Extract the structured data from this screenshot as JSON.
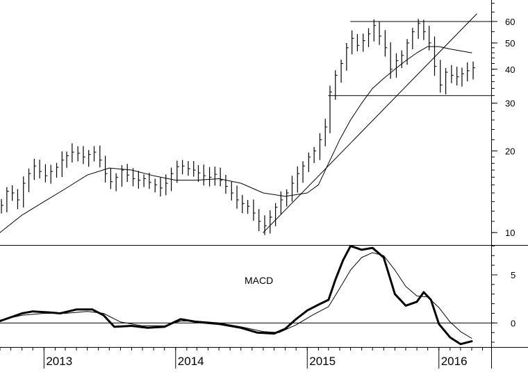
{
  "chart_data": [
    {
      "type": "bar",
      "subtype": "ohlc-price",
      "y_scale": "log",
      "ylim": [
        9,
        72
      ],
      "y_ticks": [
        10,
        20,
        30,
        40,
        50,
        60
      ],
      "x_range": [
        "2012-09-01",
        "2016-05-25"
      ],
      "x_labels": [
        "2013",
        "2014",
        "2015",
        "2016"
      ],
      "x_label_dates": [
        "2013-01-01",
        "2014-01-01",
        "2015-01-01",
        "2016-01-01"
      ],
      "grid": false,
      "series": [
        {
          "kind": "price-close",
          "points": [
            [
              "2012-09-05",
              12.6
            ],
            [
              "2012-09-20",
              14.2
            ],
            [
              "2012-10-05",
              14.0
            ],
            [
              "2012-10-20",
              13.2
            ],
            [
              "2012-11-05",
              15.2
            ],
            [
              "2012-11-20",
              16.5
            ],
            [
              "2012-12-05",
              17.6
            ],
            [
              "2012-12-20",
              16.8
            ],
            [
              "2013-01-05",
              16.2
            ],
            [
              "2013-01-20",
              16.8
            ],
            [
              "2013-02-05",
              17.4
            ],
            [
              "2013-02-20",
              18.5
            ],
            [
              "2013-03-05",
              19.2
            ],
            [
              "2013-03-20",
              19.8
            ],
            [
              "2013-04-05",
              19.6
            ],
            [
              "2013-04-20",
              19.0
            ],
            [
              "2013-05-05",
              19.4
            ],
            [
              "2013-05-20",
              19.8
            ],
            [
              "2013-06-05",
              18.5
            ],
            [
              "2013-06-20",
              16.5
            ],
            [
              "2013-07-05",
              15.4
            ],
            [
              "2013-07-20",
              16.0
            ],
            [
              "2013-08-05",
              17.0
            ],
            [
              "2013-08-20",
              16.3
            ],
            [
              "2013-09-05",
              15.8
            ],
            [
              "2013-09-20",
              15.6
            ],
            [
              "2013-10-05",
              15.8
            ],
            [
              "2013-10-20",
              15.3
            ],
            [
              "2013-11-05",
              15.0
            ],
            [
              "2013-11-20",
              14.6
            ],
            [
              "2013-12-05",
              15.2
            ],
            [
              "2013-12-20",
              16.5
            ],
            [
              "2014-01-05",
              17.5
            ],
            [
              "2014-01-20",
              17.6
            ],
            [
              "2014-02-05",
              17.2
            ],
            [
              "2014-02-20",
              17.0
            ],
            [
              "2014-03-05",
              16.6
            ],
            [
              "2014-03-20",
              16.2
            ],
            [
              "2014-04-05",
              16.0
            ],
            [
              "2014-04-20",
              16.4
            ],
            [
              "2014-05-05",
              15.6
            ],
            [
              "2014-05-20",
              14.8
            ],
            [
              "2014-06-05",
              14.0
            ],
            [
              "2014-06-20",
              13.2
            ],
            [
              "2014-07-05",
              12.8
            ],
            [
              "2014-07-20",
              12.5
            ],
            [
              "2014-08-05",
              11.8
            ],
            [
              "2014-08-20",
              11.0
            ],
            [
              "2014-09-05",
              10.6
            ],
            [
              "2014-09-20",
              11.4
            ],
            [
              "2014-10-05",
              12.4
            ],
            [
              "2014-10-20",
              13.2
            ],
            [
              "2014-11-05",
              14.0
            ],
            [
              "2014-11-20",
              15.2
            ],
            [
              "2014-12-05",
              16.5
            ],
            [
              "2014-12-20",
              17.6
            ],
            [
              "2015-01-05",
              19.0
            ],
            [
              "2015-01-20",
              20.0
            ],
            [
              "2015-02-05",
              22.0
            ],
            [
              "2015-02-20",
              24.5
            ],
            [
              "2015-03-05",
              33.0
            ],
            [
              "2015-03-20",
              38.0
            ],
            [
              "2015-04-05",
              42.0
            ],
            [
              "2015-04-20",
              48.0
            ],
            [
              "2015-05-05",
              52.0
            ],
            [
              "2015-05-20",
              49.0
            ],
            [
              "2015-06-05",
              51.0
            ],
            [
              "2015-06-20",
              54.0
            ],
            [
              "2015-07-05",
              58.0
            ],
            [
              "2015-07-20",
              53.0
            ],
            [
              "2015-08-05",
              48.0
            ],
            [
              "2015-08-20",
              40.0
            ],
            [
              "2015-09-05",
              43.0
            ],
            [
              "2015-09-20",
              45.0
            ],
            [
              "2015-10-05",
              50.0
            ],
            [
              "2015-10-20",
              55.0
            ],
            [
              "2015-11-05",
              59.0
            ],
            [
              "2015-11-20",
              55.0
            ],
            [
              "2015-12-05",
              50.0
            ],
            [
              "2015-12-20",
              41.0
            ],
            [
              "2016-01-05",
              35.0
            ],
            [
              "2016-01-20",
              39.0
            ],
            [
              "2016-02-05",
              38.0
            ],
            [
              "2016-02-20",
              37.5
            ],
            [
              "2016-03-05",
              38.5
            ],
            [
              "2016-03-20",
              39.5
            ],
            [
              "2016-04-05",
              40.5
            ]
          ]
        },
        {
          "kind": "moving-average",
          "points": [
            [
              "2012-09-01",
              10.0
            ],
            [
              "2012-11-01",
              11.6
            ],
            [
              "2013-01-01",
              13.0
            ],
            [
              "2013-03-01",
              14.5
            ],
            [
              "2013-05-01",
              16.3
            ],
            [
              "2013-07-01",
              17.3
            ],
            [
              "2013-09-01",
              17.0
            ],
            [
              "2013-11-01",
              16.2
            ],
            [
              "2014-01-01",
              15.6
            ],
            [
              "2014-03-01",
              15.6
            ],
            [
              "2014-05-01",
              15.8
            ],
            [
              "2014-07-01",
              15.2
            ],
            [
              "2014-09-01",
              14.0
            ],
            [
              "2014-11-01",
              13.6
            ],
            [
              "2015-01-01",
              14.0
            ],
            [
              "2015-02-01",
              15.0
            ],
            [
              "2015-03-01",
              18.0
            ],
            [
              "2015-04-01",
              22.0
            ],
            [
              "2015-05-01",
              26.0
            ],
            [
              "2015-06-01",
              30.0
            ],
            [
              "2015-07-01",
              34.0
            ],
            [
              "2015-08-01",
              37.0
            ],
            [
              "2015-09-01",
              40.0
            ],
            [
              "2015-10-01",
              43.0
            ],
            [
              "2015-11-01",
              46.0
            ],
            [
              "2015-12-01",
              48.5
            ],
            [
              "2016-01-01",
              48.5
            ],
            [
              "2016-02-01",
              47.5
            ],
            [
              "2016-04-01",
              46.0
            ]
          ]
        },
        {
          "kind": "trendline",
          "points": [
            [
              "2014-09-01",
              10.0
            ],
            [
              "2016-04-15",
              64.0
            ]
          ]
        },
        {
          "kind": "horizontal-line",
          "points": [
            [
              "2015-05-01",
              60.0
            ],
            [
              "2016-05-25",
              60.0
            ]
          ]
        },
        {
          "kind": "horizontal-line",
          "points": [
            [
              "2015-03-01",
              32.0
            ],
            [
              "2016-05-25",
              32.0
            ]
          ]
        }
      ]
    },
    {
      "type": "line",
      "title": "MACD",
      "y_ticks": [
        0,
        5
      ],
      "ylim": [
        -2.5,
        8.1
      ],
      "grid": false,
      "zero_line": true,
      "series": [
        {
          "kind": "macd",
          "points": [
            [
              "2012-09-01",
              0.2
            ],
            [
              "2012-11-01",
              1.0
            ],
            [
              "2012-12-01",
              1.2
            ],
            [
              "2013-01-15",
              1.1
            ],
            [
              "2013-02-15",
              1.0
            ],
            [
              "2013-04-01",
              1.4
            ],
            [
              "2013-05-15",
              1.4
            ],
            [
              "2013-06-15",
              0.8
            ],
            [
              "2013-07-15",
              -0.4
            ],
            [
              "2013-09-01",
              -0.3
            ],
            [
              "2013-10-15",
              -0.5
            ],
            [
              "2013-12-01",
              -0.4
            ],
            [
              "2014-01-15",
              0.4
            ],
            [
              "2014-03-01",
              0.1
            ],
            [
              "2014-05-01",
              -0.1
            ],
            [
              "2014-07-01",
              -0.5
            ],
            [
              "2014-08-15",
              -1.0
            ],
            [
              "2014-10-01",
              -1.1
            ],
            [
              "2014-11-01",
              -0.6
            ],
            [
              "2014-12-01",
              0.4
            ],
            [
              "2015-01-01",
              1.3
            ],
            [
              "2015-02-01",
              1.9
            ],
            [
              "2015-03-01",
              2.4
            ],
            [
              "2015-03-20",
              4.5
            ],
            [
              "2015-04-10",
              6.5
            ],
            [
              "2015-05-01",
              8.0
            ],
            [
              "2015-06-01",
              7.6
            ],
            [
              "2015-07-01",
              7.8
            ],
            [
              "2015-08-01",
              6.8
            ],
            [
              "2015-09-01",
              3.0
            ],
            [
              "2015-10-01",
              1.8
            ],
            [
              "2015-11-01",
              2.2
            ],
            [
              "2015-11-20",
              3.2
            ],
            [
              "2015-12-10",
              2.4
            ],
            [
              "2016-01-01",
              -0.1
            ],
            [
              "2016-02-01",
              -1.5
            ],
            [
              "2016-03-01",
              -2.2
            ],
            [
              "2016-04-01",
              -1.9
            ]
          ]
        },
        {
          "kind": "signal",
          "points": [
            [
              "2012-09-01",
              0.3
            ],
            [
              "2012-11-01",
              0.8
            ],
            [
              "2013-01-01",
              1.0
            ],
            [
              "2013-03-01",
              1.0
            ],
            [
              "2013-05-01",
              1.2
            ],
            [
              "2013-06-15",
              1.0
            ],
            [
              "2013-08-01",
              0.1
            ],
            [
              "2013-10-01",
              -0.3
            ],
            [
              "2013-12-01",
              -0.3
            ],
            [
              "2014-01-15",
              0.2
            ],
            [
              "2014-03-01",
              0.2
            ],
            [
              "2014-05-01",
              0.0
            ],
            [
              "2014-07-01",
              -0.4
            ],
            [
              "2014-09-01",
              -0.9
            ],
            [
              "2014-10-15",
              -1.0
            ],
            [
              "2014-12-01",
              -0.2
            ],
            [
              "2015-01-15",
              0.8
            ],
            [
              "2015-03-01",
              1.7
            ],
            [
              "2015-04-01",
              3.6
            ],
            [
              "2015-05-01",
              5.5
            ],
            [
              "2015-06-01",
              6.8
            ],
            [
              "2015-07-01",
              7.3
            ],
            [
              "2015-08-01",
              7.0
            ],
            [
              "2015-09-01",
              5.5
            ],
            [
              "2015-10-01",
              3.8
            ],
            [
              "2015-11-01",
              2.8
            ],
            [
              "2015-12-01",
              2.7
            ],
            [
              "2016-01-01",
              1.6
            ],
            [
              "2016-02-01",
              0.1
            ],
            [
              "2016-03-01",
              -0.9
            ],
            [
              "2016-04-01",
              -1.6
            ]
          ]
        }
      ]
    }
  ]
}
